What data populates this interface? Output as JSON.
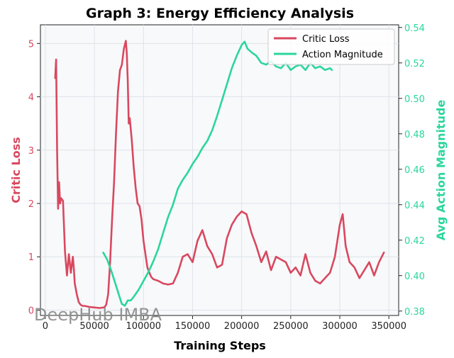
{
  "chart_data": {
    "type": "line",
    "title": "Graph 3: Energy Efficiency Analysis",
    "xlabel": "Training Steps",
    "ylabel_left": "Critic Loss",
    "ylabel_right": "Avg Action Magnitude",
    "xlim": [
      -5000,
      360000
    ],
    "ylim_left": [
      -0.1,
      5.35
    ],
    "ylim_right": [
      0.3775,
      0.5415
    ],
    "x_ticks": [
      0,
      50000,
      100000,
      150000,
      200000,
      250000,
      300000,
      350000
    ],
    "x_tick_labels": [
      "0",
      "50000",
      "100000",
      "150000",
      "200000",
      "250000",
      "300000",
      "350000"
    ],
    "y_left_ticks": [
      0,
      1,
      2,
      3,
      4,
      5
    ],
    "y_left_tick_labels": [
      "0",
      "1",
      "2",
      "3",
      "4",
      "5"
    ],
    "y_right_ticks": [
      0.38,
      0.4,
      0.42,
      0.44,
      0.46,
      0.48,
      0.5,
      0.52,
      0.54
    ],
    "y_right_tick_labels": [
      "0.38",
      "0.40",
      "0.42",
      "0.44",
      "0.46",
      "0.48",
      "0.50",
      "0.52",
      "0.54"
    ],
    "grid": true,
    "legend_position": "top-right",
    "series": [
      {
        "name": "Critic Loss",
        "axis": "left",
        "color": "#d9485f",
        "x": [
          10000,
          11000,
          12000,
          13000,
          14000,
          15000,
          16000,
          18000,
          20000,
          22000,
          24000,
          26000,
          28000,
          29000,
          30000,
          32000,
          34000,
          36000,
          38000,
          40000,
          45000,
          50000,
          55000,
          60000,
          62000,
          64000,
          66000,
          68000,
          70000,
          72000,
          74000,
          76000,
          78000,
          80000,
          82000,
          83000,
          84000,
          85000,
          86000,
          88000,
          90000,
          92000,
          94000,
          96000,
          98000,
          100000,
          102000,
          104000,
          106000,
          108000,
          110000,
          115000,
          120000,
          125000,
          130000,
          135000,
          140000,
          145000,
          150000,
          155000,
          160000,
          165000,
          170000,
          175000,
          180000,
          185000,
          190000,
          195000,
          200000,
          205000,
          210000,
          215000,
          220000,
          225000,
          230000,
          235000,
          240000,
          245000,
          250000,
          255000,
          260000,
          265000,
          270000,
          275000,
          280000,
          285000,
          290000,
          295000,
          300000,
          303000,
          306000,
          310000,
          315000,
          320000,
          325000,
          330000,
          335000,
          340000,
          345000
        ],
        "y": [
          4.35,
          4.7,
          3.0,
          1.9,
          2.4,
          2.0,
          2.1,
          2.05,
          1.1,
          0.65,
          1.05,
          0.7,
          1.0,
          0.8,
          0.5,
          0.3,
          0.15,
          0.1,
          0.08,
          0.08,
          0.06,
          0.05,
          0.04,
          0.05,
          0.1,
          0.3,
          0.9,
          1.7,
          2.4,
          3.3,
          4.1,
          4.5,
          4.6,
          4.9,
          5.05,
          4.8,
          4.3,
          3.5,
          3.6,
          3.2,
          2.7,
          2.3,
          2.0,
          1.95,
          1.7,
          1.3,
          1.05,
          0.8,
          0.7,
          0.62,
          0.58,
          0.55,
          0.5,
          0.48,
          0.5,
          0.7,
          1.0,
          1.05,
          0.9,
          1.3,
          1.5,
          1.2,
          1.05,
          0.8,
          0.85,
          1.35,
          1.6,
          1.75,
          1.85,
          1.8,
          1.45,
          1.2,
          0.9,
          1.1,
          0.75,
          1.0,
          0.95,
          0.9,
          0.7,
          0.8,
          0.65,
          1.05,
          0.7,
          0.55,
          0.5,
          0.6,
          0.7,
          1.0,
          1.6,
          1.8,
          1.2,
          0.9,
          0.8,
          0.6,
          0.75,
          0.9,
          0.65,
          0.9,
          1.08
        ]
      },
      {
        "name": "Action Magnitude",
        "axis": "right",
        "color": "#2bd69b",
        "x": [
          59000,
          63000,
          67000,
          71000,
          75000,
          78000,
          81000,
          84000,
          87000,
          90000,
          95000,
          100000,
          105000,
          110000,
          115000,
          120000,
          125000,
          130000,
          135000,
          140000,
          145000,
          150000,
          155000,
          160000,
          165000,
          170000,
          175000,
          180000,
          185000,
          190000,
          195000,
          200000,
          203000,
          206000,
          210000,
          215000,
          220000,
          225000,
          230000,
          235000,
          240000,
          245000,
          250000,
          255000,
          260000,
          265000,
          270000,
          275000,
          280000,
          285000,
          290000,
          292000
        ],
        "y": [
          0.413,
          0.409,
          0.403,
          0.396,
          0.389,
          0.384,
          0.383,
          0.386,
          0.386,
          0.388,
          0.392,
          0.397,
          0.402,
          0.408,
          0.415,
          0.424,
          0.433,
          0.44,
          0.449,
          0.454,
          0.458,
          0.463,
          0.467,
          0.472,
          0.476,
          0.482,
          0.49,
          0.499,
          0.508,
          0.517,
          0.524,
          0.53,
          0.532,
          0.528,
          0.526,
          0.524,
          0.52,
          0.519,
          0.521,
          0.518,
          0.517,
          0.52,
          0.516,
          0.518,
          0.519,
          0.516,
          0.52,
          0.517,
          0.518,
          0.516,
          0.517,
          0.516
        ]
      }
    ]
  },
  "watermark": "DeepHub IMBA"
}
